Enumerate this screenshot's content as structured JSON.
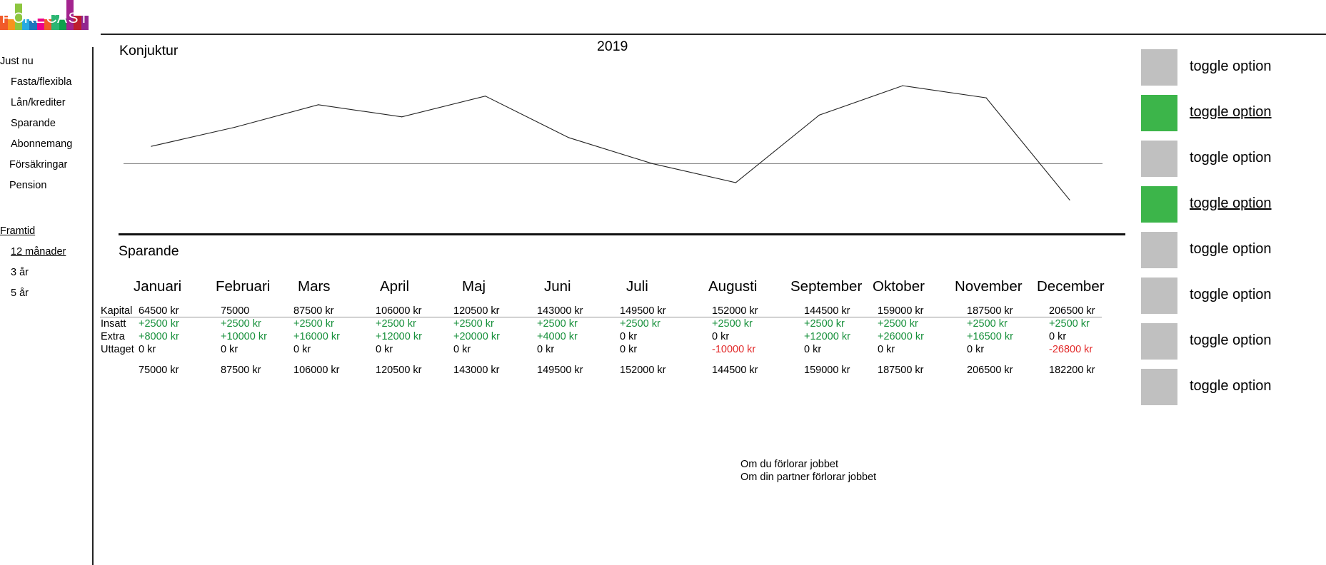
{
  "logo": {
    "text": "FORECAST",
    "bar_colors": [
      "#f15a29",
      "#f7941d",
      "#8dc63f",
      "#27aae1",
      "#1c75bc",
      "#ec008c",
      "#f15a29",
      "#2bb673",
      "#0ea14b",
      "#a3238e",
      "#be1e2d",
      "#92278f"
    ],
    "bar_levels": [
      0.3,
      0.15,
      0.85,
      0.15,
      0.1,
      0.2,
      0.15,
      0.35,
      0.2,
      1.0,
      0.3,
      0.3
    ]
  },
  "sidebar": {
    "now_heading": "Just nu",
    "now_items": [
      "Fasta/flexibla",
      "Lån/krediter",
      "Sparande",
      "Abonnemang",
      "Försäkringar",
      "Pension"
    ],
    "future_heading": "Framtid",
    "future_items": [
      "12 månader",
      "3 år",
      "5 år"
    ]
  },
  "chart_section": {
    "title": "Konjuktur",
    "year": "2019"
  },
  "chart_data": {
    "type": "line",
    "title": "2019",
    "categories": [
      "Januari",
      "Februari",
      "Mars",
      "April",
      "Maj",
      "Juni",
      "Juli",
      "Augusti",
      "September",
      "Oktober",
      "November",
      "December"
    ],
    "values": [
      1.0,
      2.1,
      3.4,
      2.7,
      3.9,
      1.5,
      0.0,
      -1.1,
      2.8,
      4.5,
      3.8,
      -2.1
    ],
    "baseline": 0,
    "ylim": [
      -2.5,
      5
    ],
    "grid": false,
    "legend": "none"
  },
  "savings": {
    "title": "Sparande",
    "months": [
      "Januari",
      "Februari",
      "Mars",
      "April",
      "Maj",
      "Juni",
      "Juli",
      "Augusti",
      "September",
      "Oktober",
      "November",
      "December"
    ],
    "row_labels": [
      "Kapital",
      "Insatt",
      "Extra",
      "Uttaget"
    ],
    "kapital": [
      "64500 kr",
      "75000",
      "87500 kr",
      "106000 kr",
      "120500 kr",
      "143000 kr",
      "149500 kr",
      "152000 kr",
      "144500 kr",
      "159000 kr",
      "187500 kr",
      "206500 kr"
    ],
    "insatt": [
      "+2500 kr",
      "+2500 kr",
      "+2500 kr",
      "+2500 kr",
      "+2500 kr",
      "+2500 kr",
      "+2500 kr",
      "+2500 kr",
      "+2500 kr",
      "+2500 kr",
      "+2500 kr",
      "+2500 kr"
    ],
    "extra": [
      "+8000 kr",
      "+10000 kr",
      "+16000 kr",
      "+12000 kr",
      "+20000 kr",
      "+4000 kr",
      "0 kr",
      "0 kr",
      "+12000 kr",
      "+26000 kr",
      "+16500 kr",
      "0 kr"
    ],
    "uttaget": [
      "0 kr",
      "0 kr",
      "0 kr",
      "0 kr",
      "0 kr",
      "0 kr",
      "0 kr",
      "-10000 kr",
      "0 kr",
      "0 kr",
      "0 kr",
      "-26800 kr"
    ],
    "total": [
      "75000 kr",
      "87500 kr",
      "106000 kr",
      "120500 kr",
      "143000 kr",
      "149500 kr",
      "152000 kr",
      "144500 kr",
      "159000 kr",
      "187500 kr",
      "206500 kr",
      "182200 kr"
    ]
  },
  "notes": [
    "Om du förlorar jobbet",
    "Om din partner förlorar jobbet"
  ],
  "toggles": [
    {
      "label": "toggle option",
      "active": false
    },
    {
      "label": "toggle option",
      "active": true
    },
    {
      "label": "toggle option",
      "active": false
    },
    {
      "label": "toggle option",
      "active": true
    },
    {
      "label": "toggle option",
      "active": false
    },
    {
      "label": "toggle option",
      "active": false
    },
    {
      "label": "toggle option",
      "active": false
    },
    {
      "label": "toggle option",
      "active": false
    }
  ],
  "colors": {
    "toggle_on": "#3cb54a",
    "toggle_off": "#c0c0c0",
    "positive": "#17903b",
    "negative": "#e22a2a"
  }
}
